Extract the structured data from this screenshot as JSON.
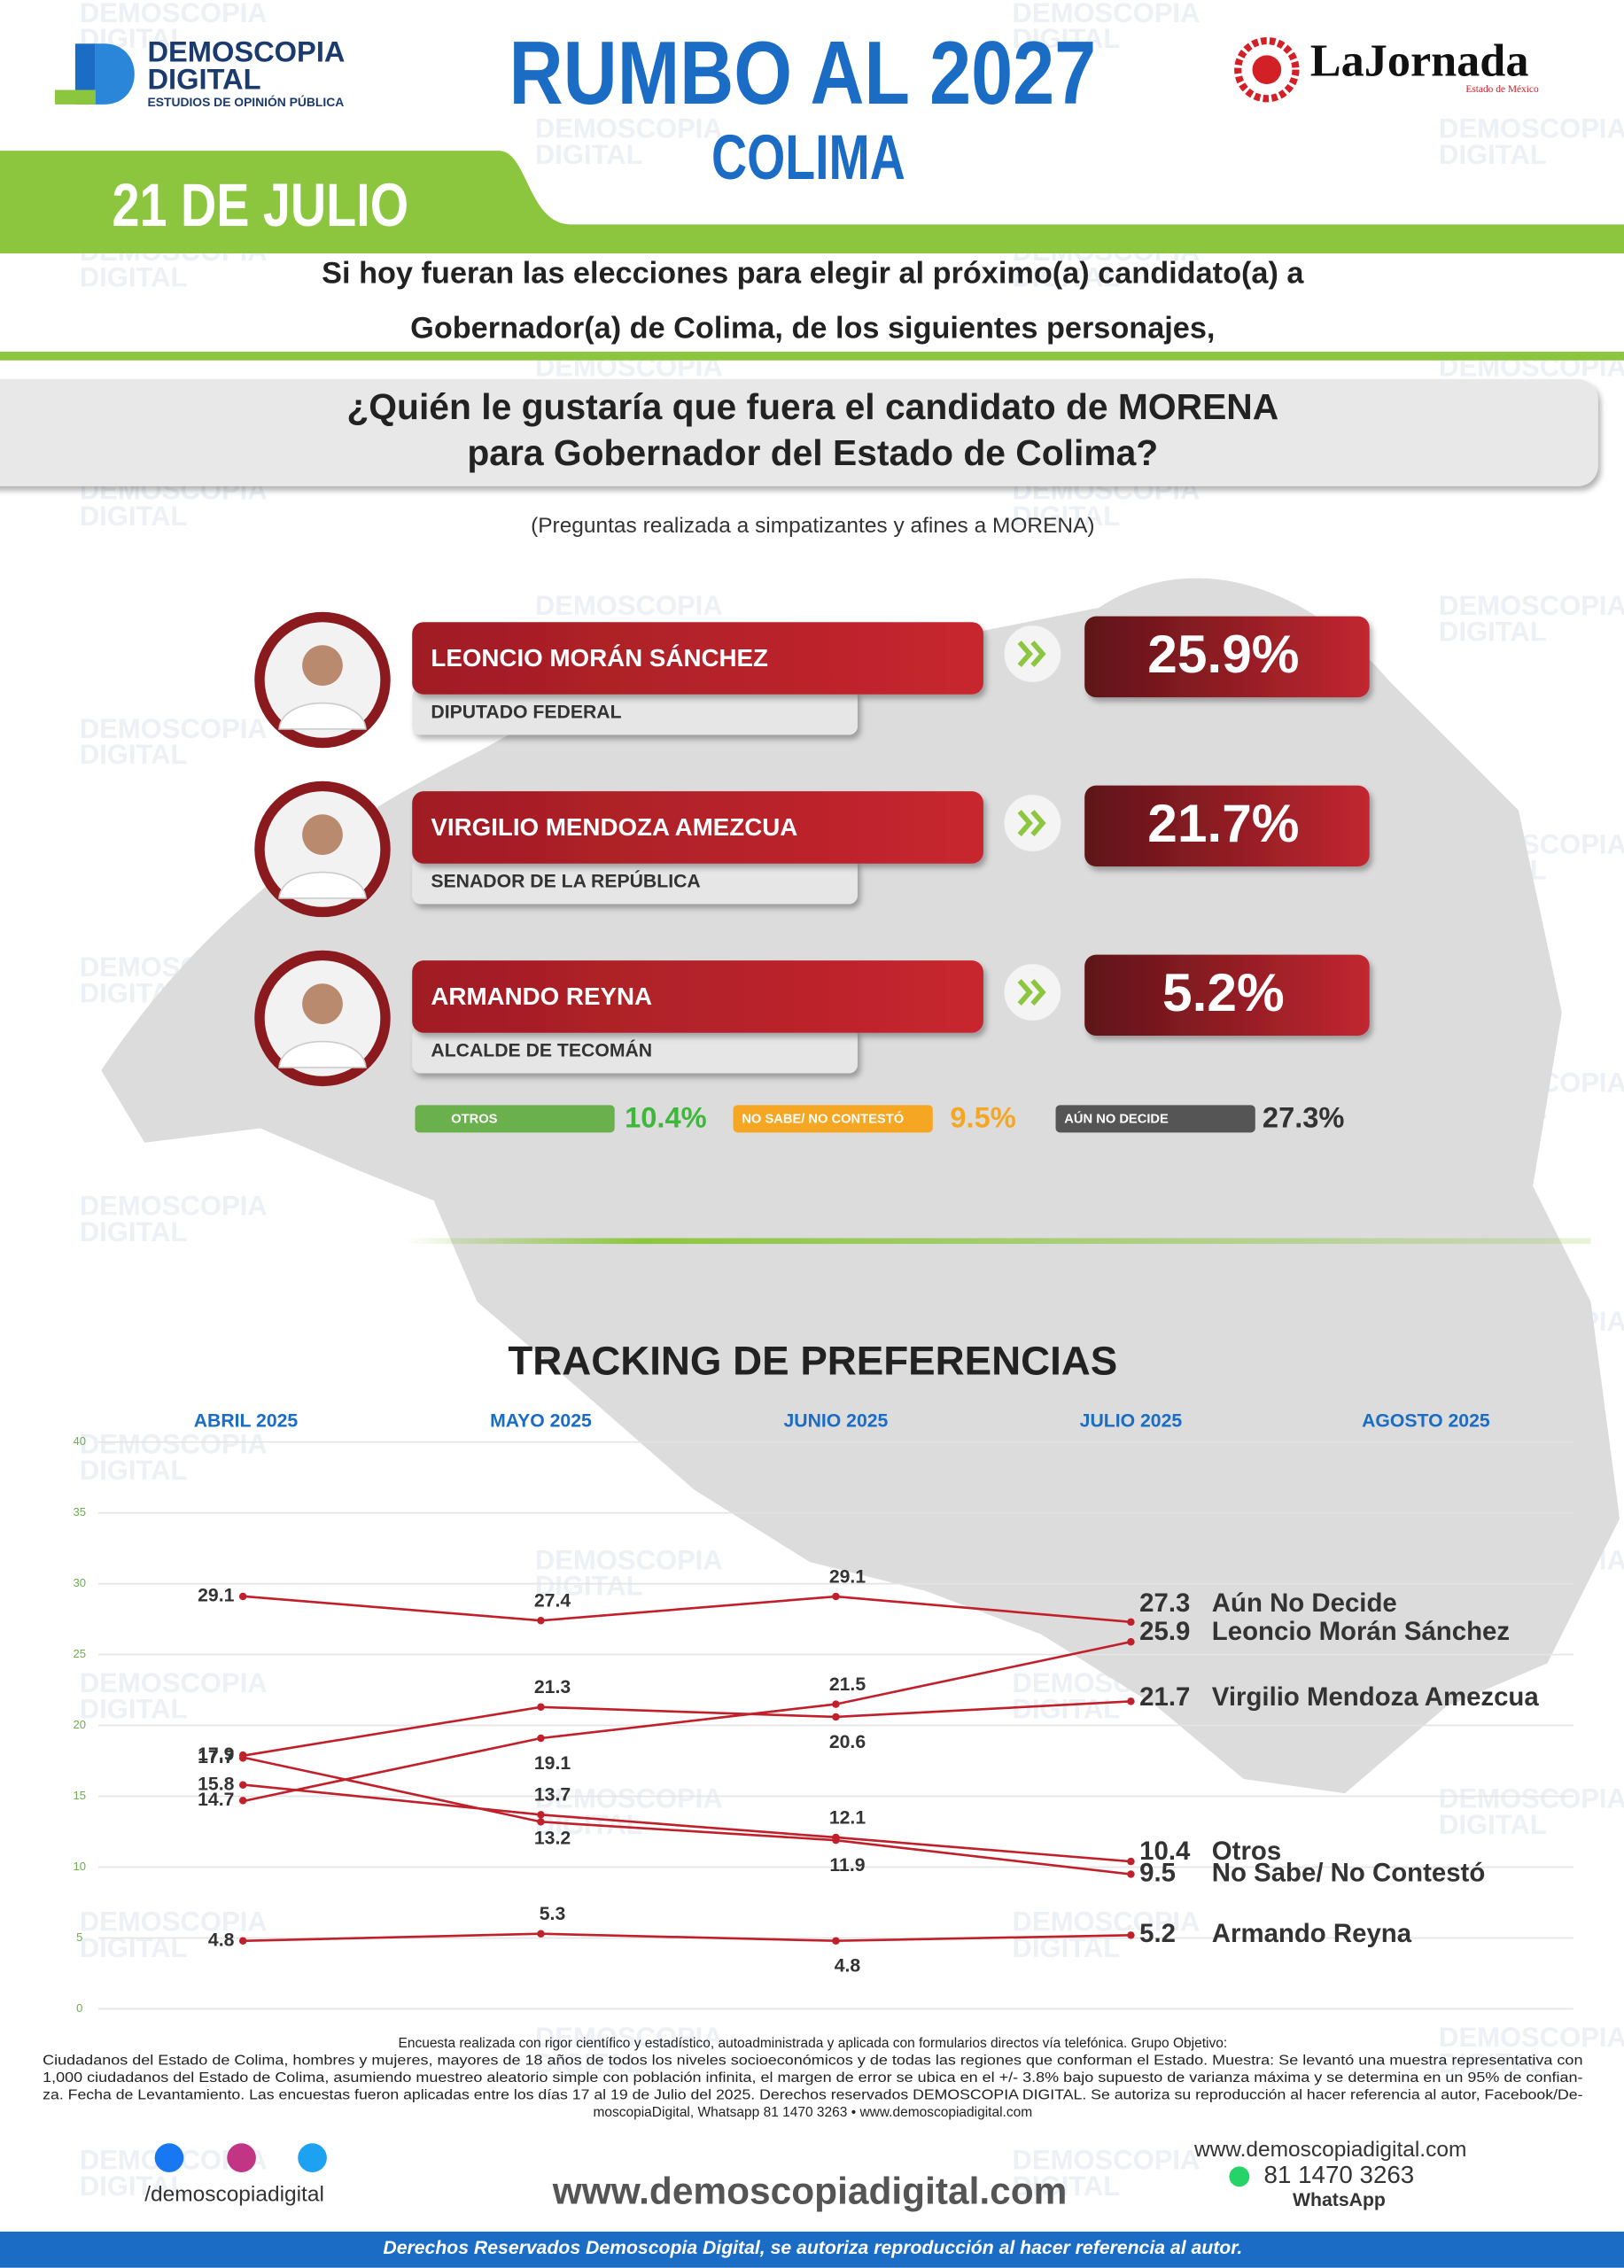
{
  "watermark": [
    "DEMOSCOPIA",
    "DIGITAL"
  ],
  "header": {
    "logo_line1": "DEMOSCOPIA",
    "logo_line2": "DIGITAL",
    "logo_tagline": "ESTUDIOS DE OPINIÓN PÚBLICA",
    "title": "RUMBO AL 2027",
    "subtitle": "COLIMA",
    "partner": "LaJornada",
    "partner_sub": "Estado de México",
    "date": "21 DE JULIO"
  },
  "intro": [
    "Si hoy fueran las elecciones para elegir al próximo(a) candidato(a) a",
    "Gobernador(a) de Colima, de los siguientes personajes,"
  ],
  "question": [
    "¿Quién le gustaría que fuera el candidato de MORENA",
    "para Gobernador del Estado de Colima?"
  ],
  "note": "(Preguntas realizada a simpatizantes y afines a MORENA)",
  "candidates": [
    {
      "name": "LEONCIO MORÁN SÁNCHEZ",
      "role": "DIPUTADO FEDERAL",
      "percent": "25.9%"
    },
    {
      "name": "VIRGILIO MENDOZA AMEZCUA",
      "role": "SENADOR DE LA REPÚBLICA",
      "percent": "21.7%"
    },
    {
      "name": "ARMANDO REYNA",
      "role": "ALCALDE DE TECOMÁN",
      "percent": "5.2%"
    }
  ],
  "others": [
    {
      "label": "OTROS",
      "percent": "10.4%",
      "color": "#6ab04c",
      "text_color": "#3db83a"
    },
    {
      "label": "NO SABE/ NO CONTESTÓ",
      "percent": "9.5%",
      "color": "#f5a623",
      "text_color": "#f5a623"
    },
    {
      "label": "AÚN NO DECIDE",
      "percent": "27.3%",
      "color": "#555555",
      "text_color": "#333333"
    }
  ],
  "chart_data": {
    "type": "line",
    "title": "TRACKING DE PREFERENCIAS",
    "categories": [
      "ABRIL 2025",
      "MAYO 2025",
      "JUNIO 2025",
      "JULIO 2025",
      "AGOSTO 2025"
    ],
    "ylim": [
      0,
      40
    ],
    "yticks": [
      0,
      5,
      10,
      15,
      20,
      25,
      30,
      35,
      40
    ],
    "grid": true,
    "series": [
      {
        "name": "Aún No Decide",
        "color": "#c0202a",
        "values": [
          29.1,
          27.4,
          29.1,
          27.3,
          null
        ]
      },
      {
        "name": "Leoncio Morán Sánchez",
        "color": "#c0202a",
        "values": [
          14.7,
          19.1,
          21.5,
          25.9,
          null
        ]
      },
      {
        "name": "Virgilio Mendoza Amezcua",
        "color": "#c0202a",
        "values": [
          17.9,
          21.3,
          20.6,
          21.7,
          null
        ]
      },
      {
        "name": "Otros",
        "color": "#c0202a",
        "values": [
          15.8,
          13.7,
          12.1,
          10.4,
          null
        ]
      },
      {
        "name": "No Sabe/ No Contestó",
        "color": "#c0202a",
        "values": [
          17.7,
          13.2,
          11.9,
          9.5,
          null
        ]
      },
      {
        "name": "Armando Reyna",
        "color": "#c0202a",
        "values": [
          4.8,
          5.3,
          4.8,
          5.2,
          null
        ]
      }
    ]
  },
  "footer": {
    "methodology": [
      "Encuesta realizada con rigor científico y estadístico, autoadministrada y aplicada con formularios directos vía telefónica. Grupo Objetivo:",
      "Ciudadanos del Estado de Colima, hombres y mujeres, mayores de 18 años de todos los niveles socioeconómicos y de todas las regiones que conforman el Estado. Muestra: Se levantó una muestra representativa con",
      "1,000 ciudadanos del Estado de Colima, asumiendo muestreo aleatorio simple con población infinita, el margen de error se ubica en el +/- 3.8% bajo supuesto de varianza máxima y se determina en un 95% de confian-",
      "za. Fecha de Levantamiento. Las encuestas fueron aplicadas entre los días 17 al 19 de Julio del 2025. Derechos reservados DEMOSCOPIA DIGITAL. Se autoriza su reproducción al hacer referencia al autor, Facebook/De-",
      "moscopiaDigital, Whatsapp 81 1470 3263 • www.demoscopiadigital.com"
    ],
    "social": "/demoscopiadigital",
    "website": "www.demoscopiadigital.com",
    "contact_web": "www.demoscopiadigital.com",
    "phone": "81 1470 3263",
    "whatsapp": "WhatsApp",
    "rights": "Derechos Reservados Demoscopia Digital, se autoriza reproducción al hacer referencia al autor."
  }
}
